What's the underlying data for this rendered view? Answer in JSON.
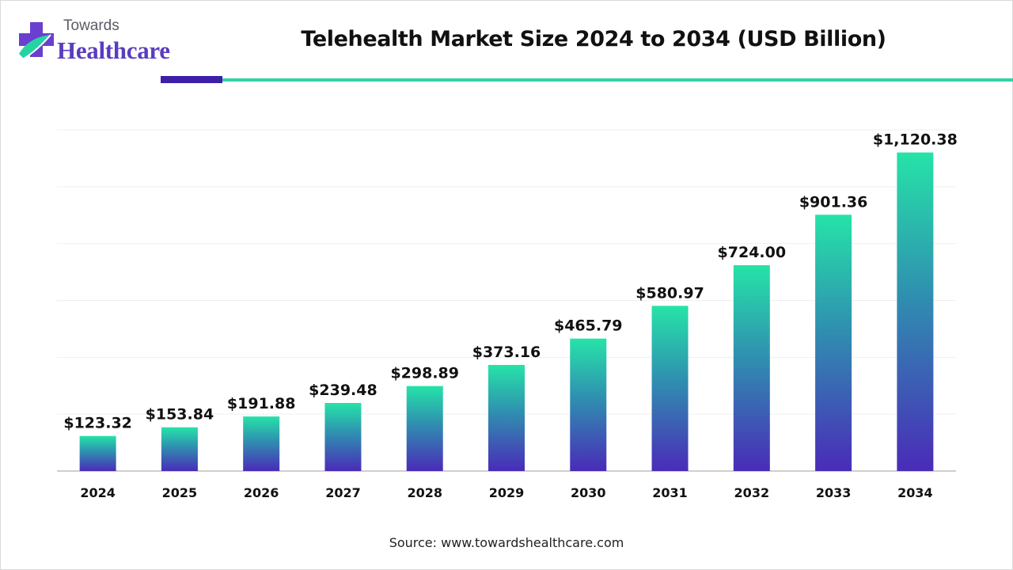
{
  "brand": {
    "top": "Towards",
    "main": "Healthcare"
  },
  "colors": {
    "bar_top": "#26e3a8",
    "bar_mid": "#2f8fb0",
    "bar_bottom": "#4a2bb8",
    "accent_dark": "#3d1fa8",
    "accent_teal": "#2fd4a6"
  },
  "chart_data": {
    "type": "bar",
    "title": "Telehealth Market Size 2024 to 2034 (USD Billion)",
    "categories": [
      "2024",
      "2025",
      "2026",
      "2027",
      "2028",
      "2029",
      "2030",
      "2031",
      "2032",
      "2033",
      "2034"
    ],
    "values": [
      123.32,
      153.84,
      191.88,
      239.48,
      298.89,
      373.16,
      465.79,
      580.97,
      724.0,
      901.36,
      1120.38
    ],
    "data_labels": [
      "$123.32",
      "$153.84",
      "$191.88",
      "$239.48",
      "$298.89",
      "$373.16",
      "$465.79",
      "$580.97",
      "$724.00",
      "$901.36",
      "$1,120.38"
    ],
    "ylim": [
      0,
      1200
    ],
    "grid": true,
    "legend": "none"
  },
  "source": "Source: www.towardshealthcare.com"
}
